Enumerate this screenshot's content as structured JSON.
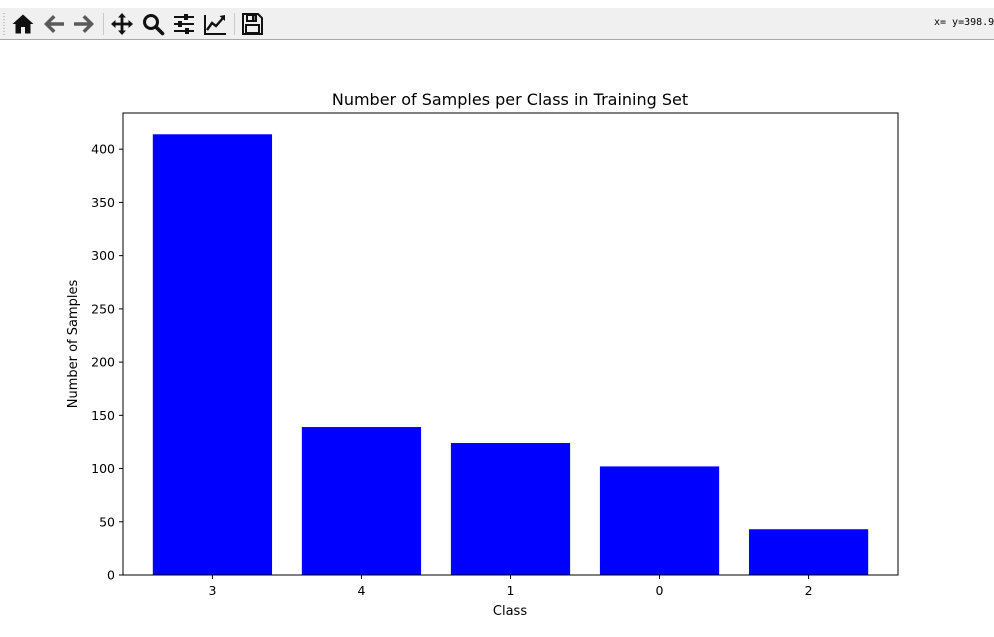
{
  "toolbar": {
    "tools": [
      {
        "name": "home-icon"
      },
      {
        "name": "back-arrow-icon"
      },
      {
        "name": "forward-arrow-icon"
      },
      {
        "name": "pan-move-icon"
      },
      {
        "name": "zoom-magnifier-icon"
      },
      {
        "name": "subplots-sliders-icon"
      },
      {
        "name": "edit-curve-icon"
      },
      {
        "name": "save-floppy-icon"
      }
    ],
    "coords_text": "x= y=398.9"
  },
  "colors": {
    "bar": "#0000ff",
    "back_icon": "#5a5a5a",
    "icon": "#111111"
  },
  "chart_data": {
    "type": "bar",
    "title": "Number of Samples per Class in Training Set",
    "xlabel": "Class",
    "ylabel": "Number of Samples",
    "categories": [
      "3",
      "4",
      "1",
      "0",
      "2"
    ],
    "values": [
      414,
      139,
      124,
      102,
      43
    ],
    "ylim": [
      0,
      434
    ],
    "yticks": [
      0,
      50,
      100,
      150,
      200,
      250,
      300,
      350,
      400
    ],
    "grid": false,
    "legend": "none"
  }
}
